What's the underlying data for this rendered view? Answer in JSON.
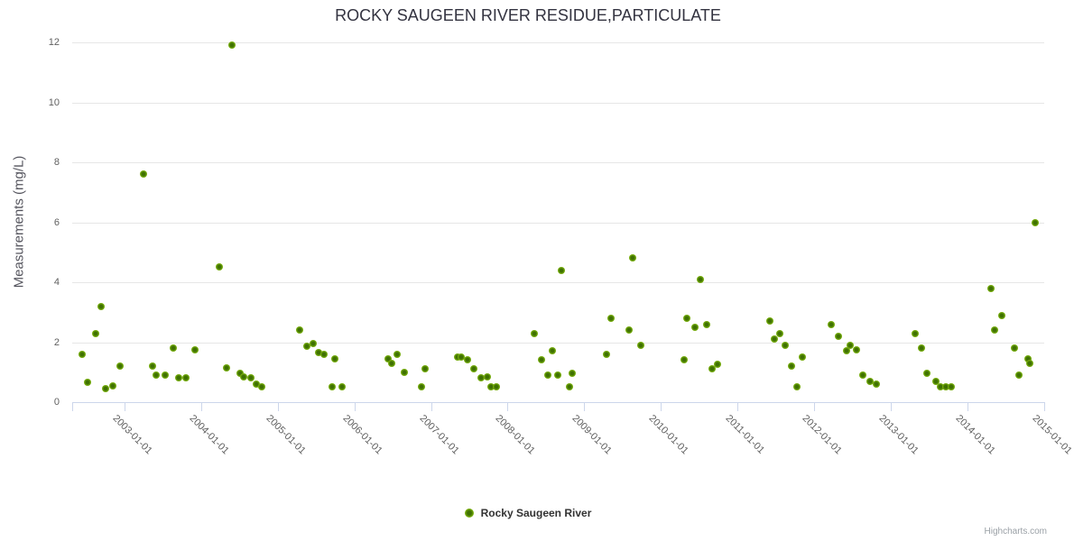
{
  "colors": {
    "background": "#ffffff",
    "title": "#333340",
    "y_axis_title": "#55555e",
    "axis_labels": "#606060",
    "gridline": "#e6e6e6",
    "axis_line": "#ccd6eb",
    "series_green_outer": "#7db40e",
    "series_green_inner": "#3f7102",
    "series_green_light": "#8cc41a",
    "legend_text": "#333333",
    "credits": "#9aa0a6"
  },
  "chart_data": {
    "type": "scatter",
    "title": "ROCKY SAUGEEN RIVER RESIDUE,PARTICULATE",
    "xlabel": "",
    "ylabel": "Measurements (mg/L)",
    "ylim": [
      0,
      12
    ],
    "y_ticks": [
      0,
      2,
      4,
      6,
      8,
      10,
      12
    ],
    "x_tick_labels": [
      "2003-01-01",
      "2004-01-01",
      "2005-01-01",
      "2006-01-01",
      "2007-01-01",
      "2008-01-01",
      "2009-01-01",
      "2010-01-01",
      "2011-01-01",
      "2012-01-01",
      "2013-01-01",
      "2014-01-01",
      "2015-01-01"
    ],
    "x_range_decimal_years": [
      2002.32,
      2015.0
    ],
    "grid": true,
    "legend_position": "bottom-center",
    "credits": "Highcharts.com",
    "series": [
      {
        "name": "Rocky Saugeen River",
        "color": "#7db40e",
        "points": [
          [
            "2002-06-15",
            1.6
          ],
          [
            "2002-07-08",
            0.65
          ],
          [
            "2002-08-15",
            2.3
          ],
          [
            "2002-09-10",
            3.2
          ],
          [
            "2002-10-01",
            0.45
          ],
          [
            "2002-11-05",
            0.55
          ],
          [
            "2002-12-12",
            1.2
          ],
          [
            "2003-04-01",
            7.6
          ],
          [
            "2003-05-12",
            1.2
          ],
          [
            "2003-06-01",
            0.9
          ],
          [
            "2003-07-15",
            0.9
          ],
          [
            "2003-08-20",
            1.8
          ],
          [
            "2003-09-15",
            0.8
          ],
          [
            "2003-10-20",
            0.8
          ],
          [
            "2003-12-01",
            1.75
          ],
          [
            "2004-03-28",
            4.5
          ],
          [
            "2004-05-03",
            1.15
          ],
          [
            "2004-05-28",
            11.9
          ],
          [
            "2004-07-05",
            0.95
          ],
          [
            "2004-07-22",
            0.85
          ],
          [
            "2004-08-25",
            0.8
          ],
          [
            "2004-09-20",
            0.6
          ],
          [
            "2004-10-15",
            0.5
          ],
          [
            "2005-04-15",
            2.4
          ],
          [
            "2005-05-18",
            1.85
          ],
          [
            "2005-06-17",
            1.95
          ],
          [
            "2005-07-12",
            1.65
          ],
          [
            "2005-08-10",
            1.6
          ],
          [
            "2005-09-15",
            0.5
          ],
          [
            "2005-10-01",
            1.45
          ],
          [
            "2005-11-02",
            0.5
          ],
          [
            "2006-06-10",
            1.45
          ],
          [
            "2006-06-28",
            1.3
          ],
          [
            "2006-07-22",
            1.6
          ],
          [
            "2006-08-25",
            1.0
          ],
          [
            "2006-11-18",
            0.5
          ],
          [
            "2006-12-05",
            1.1
          ],
          [
            "2007-05-05",
            1.5
          ],
          [
            "2007-05-25",
            1.5
          ],
          [
            "2007-06-25",
            1.4
          ],
          [
            "2007-07-22",
            1.1
          ],
          [
            "2007-08-25",
            0.8
          ],
          [
            "2007-09-25",
            0.85
          ],
          [
            "2007-10-15",
            0.5
          ],
          [
            "2007-11-10",
            0.5
          ],
          [
            "2008-05-05",
            2.3
          ],
          [
            "2008-06-10",
            1.4
          ],
          [
            "2008-07-12",
            0.9
          ],
          [
            "2008-08-01",
            1.7
          ],
          [
            "2008-08-25",
            0.9
          ],
          [
            "2008-09-15",
            4.4
          ],
          [
            "2008-10-22",
            0.5
          ],
          [
            "2008-11-05",
            0.95
          ],
          [
            "2009-04-15",
            1.6
          ],
          [
            "2009-05-08",
            2.8
          ],
          [
            "2009-07-30",
            2.4
          ],
          [
            "2009-08-20",
            4.8
          ],
          [
            "2009-09-25",
            1.9
          ],
          [
            "2010-04-18",
            1.4
          ],
          [
            "2010-05-01",
            2.8
          ],
          [
            "2010-06-12",
            2.5
          ],
          [
            "2010-07-05",
            4.1
          ],
          [
            "2010-08-08",
            2.6
          ],
          [
            "2010-09-02",
            1.1
          ],
          [
            "2010-09-25",
            1.25
          ],
          [
            "2011-06-01",
            2.7
          ],
          [
            "2011-06-25",
            2.1
          ],
          [
            "2011-07-20",
            2.3
          ],
          [
            "2011-08-15",
            1.9
          ],
          [
            "2011-09-15",
            1.2
          ],
          [
            "2011-10-10",
            0.5
          ],
          [
            "2011-11-05",
            1.5
          ],
          [
            "2012-03-20",
            2.6
          ],
          [
            "2012-04-25",
            2.2
          ],
          [
            "2012-06-01",
            1.7
          ],
          [
            "2012-06-20",
            1.9
          ],
          [
            "2012-07-18",
            1.75
          ],
          [
            "2012-08-20",
            0.9
          ],
          [
            "2012-09-22",
            0.7
          ],
          [
            "2012-10-25",
            0.6
          ],
          [
            "2013-04-25",
            2.3
          ],
          [
            "2013-05-25",
            1.8
          ],
          [
            "2013-06-20",
            0.95
          ],
          [
            "2013-08-01",
            0.7
          ],
          [
            "2013-08-25",
            0.5
          ],
          [
            "2013-09-20",
            0.5
          ],
          [
            "2013-10-15",
            0.5
          ],
          [
            "2014-04-20",
            3.8
          ],
          [
            "2014-05-10",
            2.4
          ],
          [
            "2014-06-12",
            2.9
          ],
          [
            "2014-08-10",
            1.8
          ],
          [
            "2014-09-01",
            0.9
          ],
          [
            "2014-10-15",
            1.45
          ],
          [
            "2014-10-25",
            1.3
          ],
          [
            "2014-11-20",
            6.0
          ]
        ]
      }
    ]
  }
}
